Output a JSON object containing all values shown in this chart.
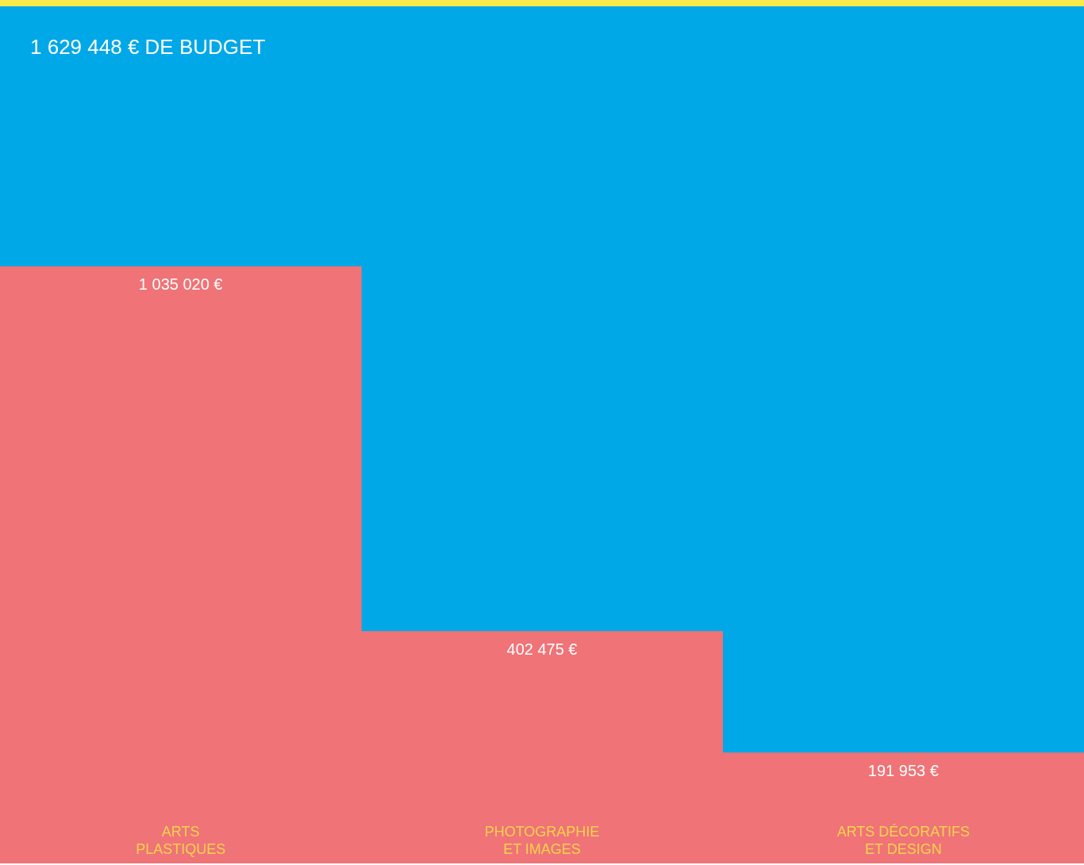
{
  "chart_data": {
    "type": "bar",
    "title": "1 629 448 € DE BUDGET",
    "categories": [
      "ARTS\nPLASTIQUES",
      "PHOTOGRAPHIE\nET IMAGES",
      "ARTS DÉCORATIFS\nET DESIGN"
    ],
    "values": [
      1035020,
      402475,
      191953
    ],
    "color": "#ef7377",
    "value_labels": [
      "1 035 020 €",
      "402 475 €",
      "191 953 €"
    ],
    "tick_labels": "x"
  }
}
